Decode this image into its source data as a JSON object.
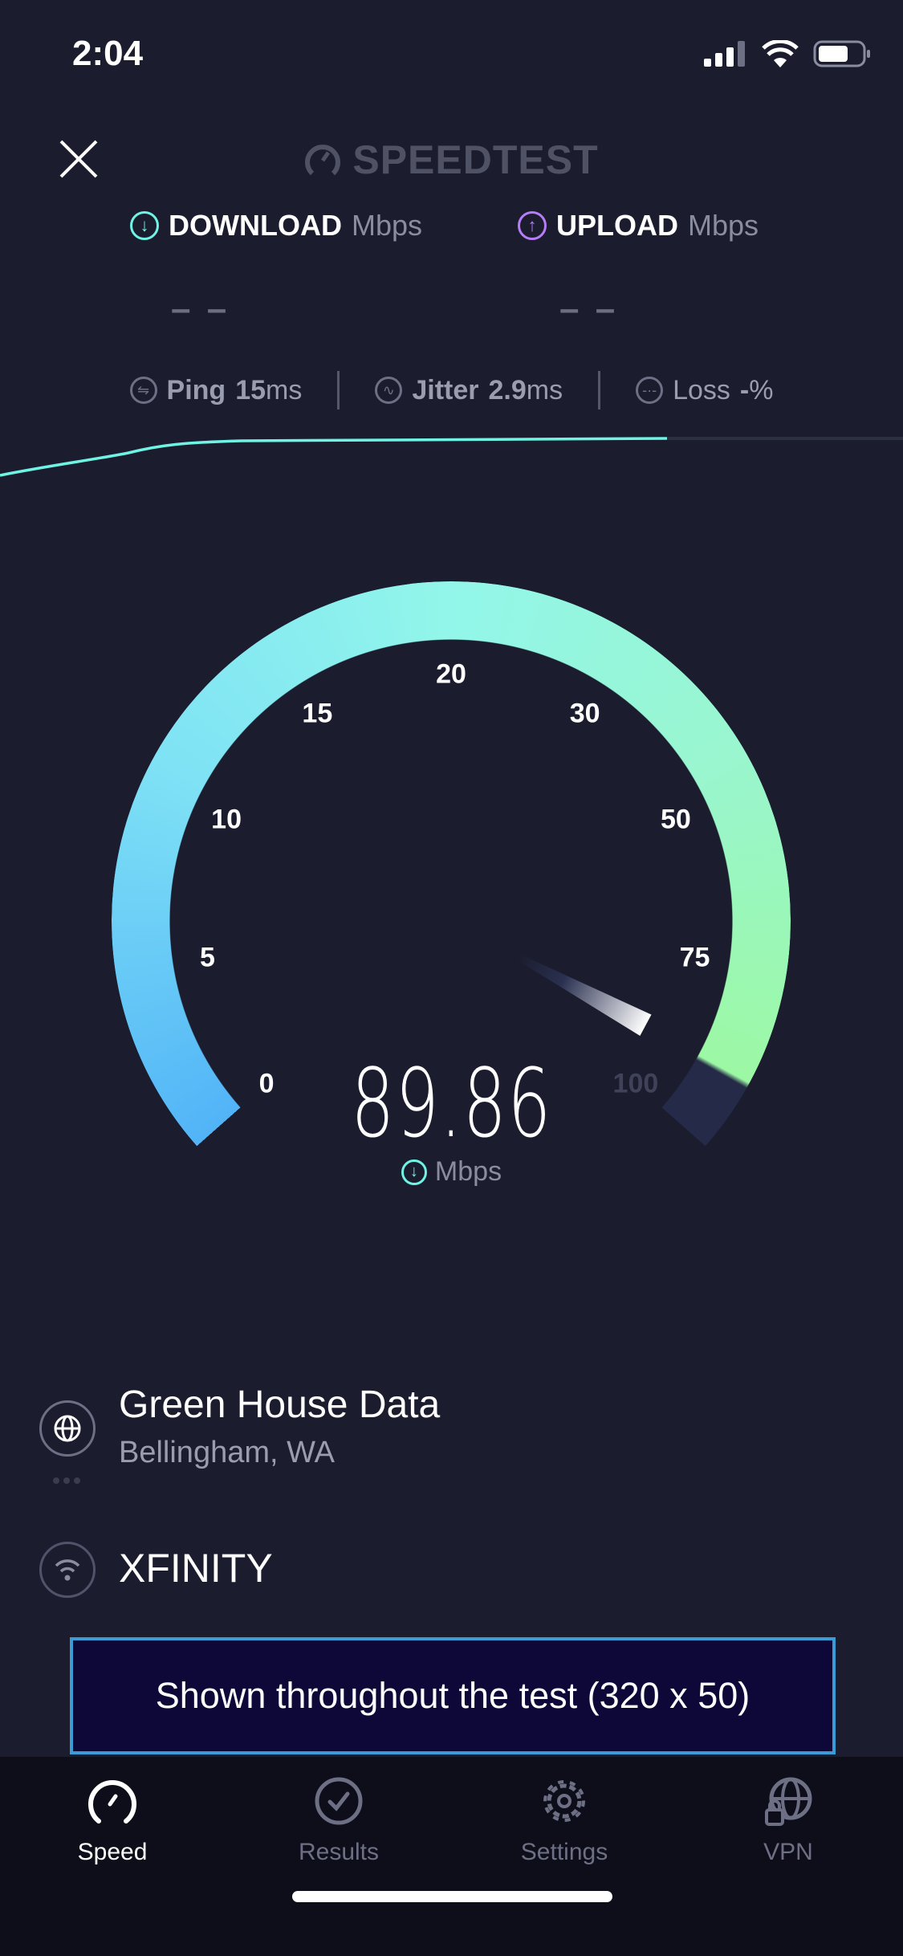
{
  "status_bar": {
    "time": "2:04",
    "icons": [
      "signal-icon",
      "wifi-icon",
      "battery-icon"
    ]
  },
  "header": {
    "logo": "SPEEDTEST",
    "close_icon": "close-icon"
  },
  "download": {
    "label": "DOWNLOAD",
    "unit": "Mbps",
    "value": "– –",
    "color": "#6ff3e4"
  },
  "upload": {
    "label": "UPLOAD",
    "unit": "Mbps",
    "value": "– –",
    "color": "#b77cf7"
  },
  "stats": {
    "ping": {
      "label": "Ping",
      "value": "15",
      "unit": "ms"
    },
    "jitter": {
      "label": "Jitter",
      "value": "2.9",
      "unit": "ms"
    },
    "loss": {
      "label": "Loss",
      "value": "-",
      "unit": "%"
    }
  },
  "gauge": {
    "ticks": [
      "0",
      "5",
      "10",
      "15",
      "20",
      "30",
      "50",
      "75",
      "100"
    ],
    "value": "89.86",
    "numeric_value": 89.86,
    "unit": "Mbps"
  },
  "server": {
    "name": "Green House Data",
    "location": "Bellingham, WA"
  },
  "isp": {
    "name": "XFINITY"
  },
  "ad": {
    "text": "Shown throughout the test (320 x 50)"
  },
  "tabs": [
    {
      "label": "Speed",
      "icon": "speedometer-icon",
      "active": true
    },
    {
      "label": "Results",
      "icon": "check-circle-icon"
    },
    {
      "label": "Settings",
      "icon": "gear-icon"
    },
    {
      "label": "VPN",
      "icon": "globe-lock-icon"
    }
  ]
}
